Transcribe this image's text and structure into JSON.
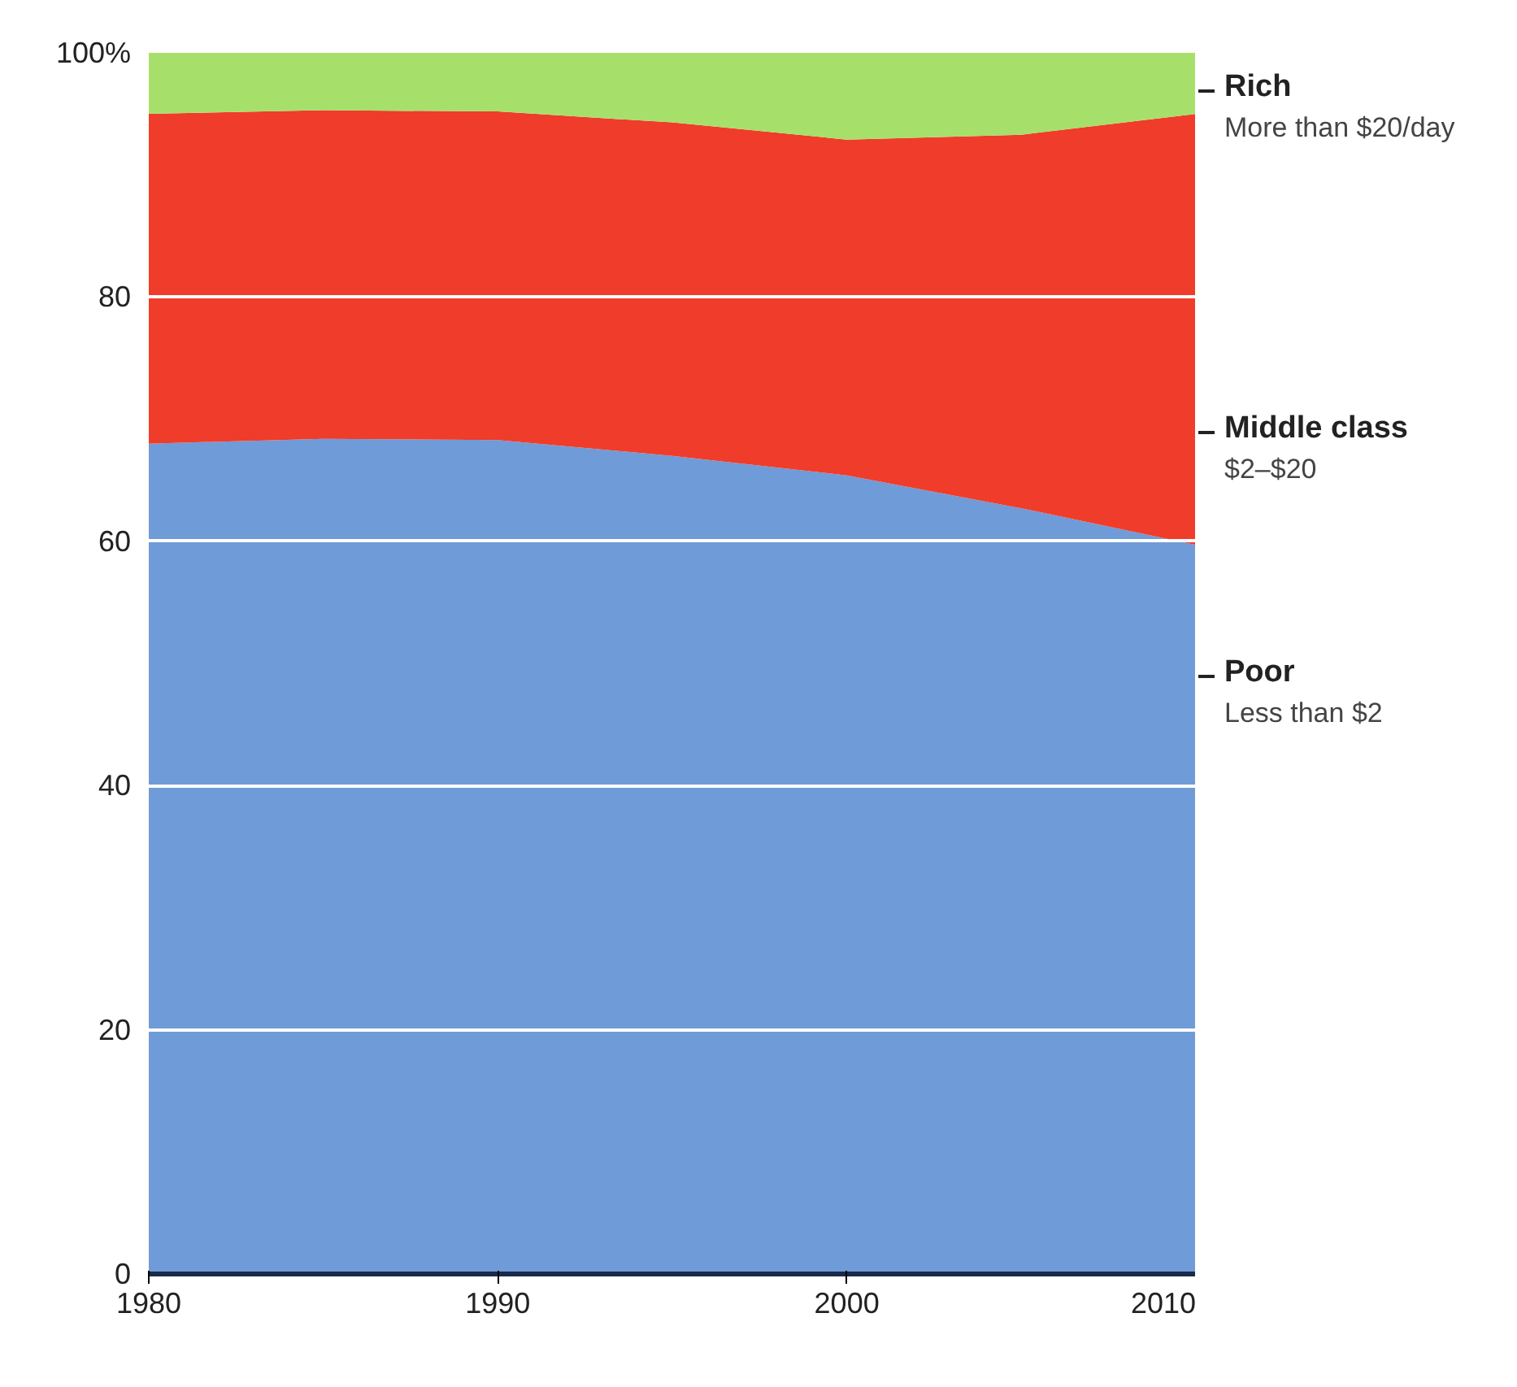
{
  "chart_data": {
    "type": "area",
    "stacked": true,
    "x": [
      1980,
      1985,
      1990,
      1995,
      2000,
      2005,
      2010
    ],
    "series": [
      {
        "name": "Poor",
        "color": "#6f9bd8",
        "values": [
          68,
          68.4,
          68.3,
          67,
          65.4,
          62.7,
          59.7
        ]
      },
      {
        "name": "Middle class",
        "color": "#f03c2a",
        "values": [
          27,
          26.9,
          26.9,
          27.3,
          27.5,
          30.6,
          35.3
        ]
      },
      {
        "name": "Rich",
        "color": "#a6e06a",
        "values": [
          5,
          4.7,
          4.8,
          5.7,
          7.1,
          6.7,
          5
        ]
      }
    ],
    "annotations": [
      "Less than $2",
      "$2–$20",
      "More than $20/day"
    ],
    "xlim": [
      1980,
      2010
    ],
    "xticks": [
      1980,
      1990,
      2000,
      2010
    ],
    "ylim": [
      0,
      100
    ],
    "yticks": [
      0,
      20,
      40,
      60,
      80,
      {
        "value": 100,
        "label": "100%"
      }
    ],
    "grid": "y"
  }
}
